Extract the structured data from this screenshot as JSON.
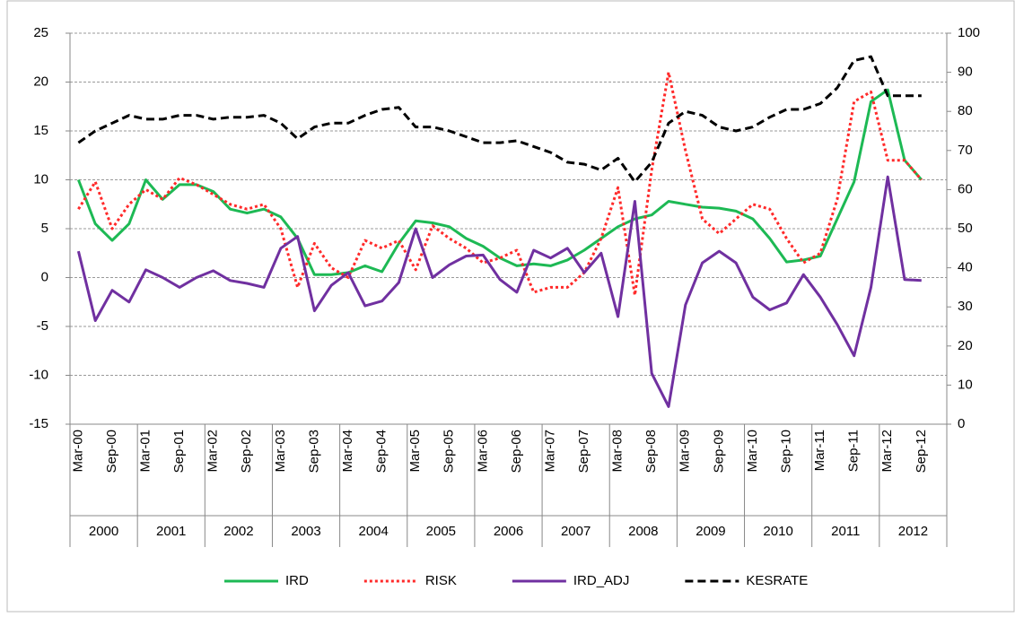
{
  "chart_data": {
    "type": "line",
    "categories": [
      "Mar-00",
      null,
      "Sep-00",
      null,
      "Mar-01",
      null,
      "Sep-01",
      null,
      "Mar-02",
      null,
      "Sep-02",
      null,
      "Mar-03",
      null,
      "Sep-03",
      null,
      "Mar-04",
      null,
      "Sep-04",
      null,
      "Mar-05",
      null,
      "Sep-05",
      null,
      "Mar-06",
      null,
      "Sep-06",
      null,
      "Mar-07",
      null,
      "Sep-07",
      null,
      "Mar-08",
      null,
      "Sep-08",
      null,
      "Mar-09",
      null,
      "Sep-09",
      null,
      "Mar-10",
      null,
      "Sep-10",
      null,
      "Mar-11",
      null,
      "Sep-11",
      null,
      "Mar-12",
      null,
      "Sep-12"
    ],
    "year_groups": [
      "2000",
      "2001",
      "2002",
      "2003",
      "2004",
      "2005",
      "2006",
      "2007",
      "2008",
      "2009",
      "2010",
      "2011",
      "2012"
    ],
    "series": [
      {
        "name": "IRD",
        "color": "#1db954",
        "style": "solid",
        "values": [
          10,
          5.5,
          3.8,
          5.5,
          10,
          8,
          9.5,
          9.5,
          8.8,
          7,
          6.6,
          7,
          6.2,
          4,
          0.3,
          0.3,
          0.5,
          1.2,
          0.6,
          3.5,
          5.8,
          5.6,
          5.2,
          4,
          3.2,
          2,
          1.2,
          1.4,
          1.2,
          1.8,
          2.8,
          4,
          5.2,
          6,
          6.4,
          7.8,
          7.5,
          7.2,
          7.1,
          6.8,
          6,
          4,
          1.6,
          1.8,
          2.2,
          6,
          9.8,
          18,
          19.2,
          12,
          10
        ]
      },
      {
        "name": "RISK",
        "color": "#ff2a2a",
        "style": "dotted",
        "values": [
          7,
          9.8,
          5,
          7.5,
          9,
          8,
          10.2,
          9.5,
          8.5,
          7.5,
          7,
          7.5,
          5,
          -1,
          3.5,
          1,
          0,
          3.8,
          3,
          3.8,
          0.8,
          5.3,
          4,
          3,
          1.5,
          2,
          2.8,
          -1.5,
          -1,
          -1,
          0.5,
          4,
          9.2,
          -1.8,
          11,
          21,
          13,
          6,
          4.5,
          6,
          7.5,
          7,
          4,
          1.5,
          2.5,
          8,
          18,
          19,
          12,
          12,
          10
        ]
      },
      {
        "name": "IRD_ADJ",
        "color": "#7030a0",
        "style": "solid",
        "values": [
          2.7,
          -4.4,
          -1.3,
          -2.5,
          0.8,
          0,
          -1,
          0,
          0.7,
          -0.3,
          -0.6,
          -1,
          3,
          4.2,
          -3.4,
          -0.8,
          0.5,
          -2.9,
          -2.4,
          -0.5,
          5,
          0,
          1.3,
          2.2,
          2.3,
          -0.2,
          -1.5,
          2.8,
          2,
          3,
          0.5,
          2.5,
          -4,
          7.8,
          -9.8,
          -13.2,
          -2.8,
          1.5,
          2.7,
          1.5,
          -2,
          -3.3,
          -2.6,
          0.3,
          -2,
          -4.8,
          -8,
          -1,
          10.3,
          -0.2,
          -0.3
        ]
      },
      {
        "name": "KESRATE",
        "color": "#000000",
        "style": "dashed",
        "axis": "y2",
        "values": [
          72,
          75,
          77,
          79,
          78,
          78,
          79,
          79,
          78,
          78.5,
          78.5,
          79,
          77,
          73,
          76,
          77,
          77,
          79,
          80.5,
          81,
          76,
          76,
          75,
          73.5,
          72,
          72,
          72.5,
          71,
          69.5,
          67,
          66.5,
          65,
          68,
          62,
          67,
          77,
          80,
          79,
          76,
          75,
          76,
          78.5,
          80.5,
          80.5,
          82,
          86,
          93,
          94,
          84,
          84,
          84
        ]
      }
    ],
    "ylim": [
      -15,
      25
    ],
    "yticks": [
      -15,
      -10,
      -5,
      0,
      5,
      10,
      15,
      20,
      25
    ],
    "y2lim": [
      0,
      100
    ],
    "y2ticks": [
      0,
      10,
      20,
      30,
      40,
      50,
      60,
      70,
      80,
      90,
      100
    ],
    "grid": true,
    "legend": "bottom"
  }
}
